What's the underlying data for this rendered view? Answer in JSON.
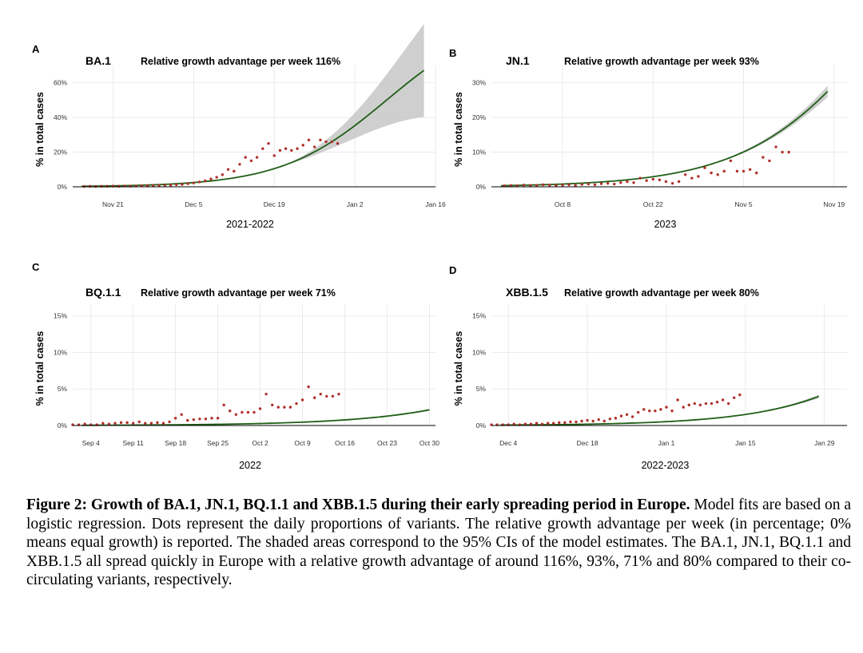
{
  "chart_data": [
    {
      "type": "scatter",
      "panel": "A",
      "title": "BA.1",
      "subtitle": "Relative growth advantage per week 116%",
      "xlabel": "2021-2022",
      "ylabel": "% in total cases",
      "x_ticks": [
        "Nov 21",
        "Dec 5",
        "Dec 19",
        "Jan 2",
        "Jan 16"
      ],
      "y_ticks": [
        "0%",
        "20%",
        "40%",
        "60%"
      ],
      "ylim": [
        0,
        70
      ],
      "xlim_days": [
        -7,
        56
      ],
      "fit": {
        "lower": 0,
        "upper": 100,
        "t0": 47.5,
        "k": 0.11,
        "ci": 0.4,
        "to_day": 54
      },
      "points_day_offset_from": "Nov 21",
      "points": [
        [
          -5,
          0.2
        ],
        [
          -4,
          0.3
        ],
        [
          -3,
          0.2
        ],
        [
          -2,
          0.3
        ],
        [
          -1,
          0.3
        ],
        [
          0,
          0.4
        ],
        [
          1,
          0.3
        ],
        [
          2,
          0.5
        ],
        [
          3,
          0.4
        ],
        [
          4,
          0.5
        ],
        [
          5,
          0.6
        ],
        [
          6,
          0.6
        ],
        [
          7,
          0.7
        ],
        [
          8,
          0.8
        ],
        [
          9,
          0.9
        ],
        [
          10,
          1.0
        ],
        [
          11,
          1.2
        ],
        [
          12,
          1.4
        ],
        [
          13,
          1.8
        ],
        [
          14,
          2.2
        ],
        [
          15,
          2.8
        ],
        [
          16,
          3.5
        ],
        [
          17,
          4.5
        ],
        [
          18,
          5.5
        ],
        [
          19,
          7
        ],
        [
          20,
          10
        ],
        [
          21,
          9
        ],
        [
          22,
          13
        ],
        [
          23,
          17
        ],
        [
          24,
          15
        ],
        [
          25,
          17
        ],
        [
          26,
          22
        ],
        [
          27,
          25
        ],
        [
          28,
          18
        ],
        [
          29,
          21
        ],
        [
          30,
          22
        ],
        [
          31,
          21
        ],
        [
          32,
          22
        ],
        [
          33,
          24
        ],
        [
          34,
          27
        ],
        [
          35,
          23
        ],
        [
          36,
          27
        ],
        [
          37,
          26
        ],
        [
          38,
          26
        ],
        [
          39,
          25
        ]
      ]
    },
    {
      "type": "scatter",
      "panel": "B",
      "title": "JN.1",
      "subtitle": "Relative growth advantage per week 93%",
      "xlabel": "2023",
      "ylabel": "% in total cases",
      "x_ticks": [
        "Oct 8",
        "Oct 22",
        "Nov 5",
        "Nov 19"
      ],
      "y_ticks": [
        "0%",
        "10%",
        "20%",
        "30%"
      ],
      "ylim": [
        0,
        35
      ],
      "xlim_days": [
        -11,
        44
      ],
      "fit": {
        "lower": 0,
        "upper": 100,
        "t0": 51.3,
        "k": 0.094,
        "ci": 0.06,
        "to_day": 41
      },
      "points_day_offset_from": "Oct 8",
      "points": [
        [
          -9,
          0.3
        ],
        [
          -8,
          0.4
        ],
        [
          -7,
          0.3
        ],
        [
          -6,
          0.5
        ],
        [
          -5,
          0.4
        ],
        [
          -4,
          0.4
        ],
        [
          -3,
          0.6
        ],
        [
          -2,
          0.5
        ],
        [
          -1,
          0.4
        ],
        [
          0,
          0.5
        ],
        [
          1,
          0.6
        ],
        [
          2,
          0.4
        ],
        [
          3,
          0.7
        ],
        [
          4,
          0.8
        ],
        [
          5,
          0.6
        ],
        [
          6,
          0.9
        ],
        [
          7,
          1.0
        ],
        [
          8,
          0.8
        ],
        [
          9,
          1.2
        ],
        [
          10,
          1.5
        ],
        [
          11,
          1.2
        ],
        [
          12,
          2.5
        ],
        [
          13,
          1.8
        ],
        [
          14,
          2.2
        ],
        [
          15,
          2.0
        ],
        [
          16,
          1.5
        ],
        [
          17,
          1.0
        ],
        [
          18,
          1.5
        ],
        [
          19,
          3.5
        ],
        [
          20,
          2.5
        ],
        [
          21,
          3.0
        ],
        [
          22,
          5.5
        ],
        [
          23,
          4.0
        ],
        [
          24,
          3.5
        ],
        [
          25,
          4.5
        ],
        [
          26,
          7.5
        ],
        [
          27,
          4.5
        ],
        [
          28,
          4.5
        ],
        [
          29,
          5.0
        ],
        [
          30,
          4.0
        ],
        [
          31,
          8.5
        ],
        [
          32,
          7.5
        ],
        [
          33,
          11.5
        ],
        [
          34,
          10
        ],
        [
          35,
          10
        ]
      ]
    },
    {
      "type": "scatter",
      "panel": "C",
      "title": "BQ.1.1",
      "subtitle": "Relative growth advantage per week 71%",
      "xlabel": "2022",
      "ylabel": "% in total cases",
      "x_ticks": [
        "Sep 4",
        "Sep 11",
        "Sep 18",
        "Sep 25",
        "Oct 2",
        "Oct 9",
        "Oct 16",
        "Oct 23",
        "Oct 30"
      ],
      "y_ticks": [
        "0%",
        "5%",
        "10%",
        "15%"
      ],
      "ylim": [
        0,
        16.5
      ],
      "xlim_days": [
        -3,
        57
      ],
      "fit": {
        "lower": 0,
        "upper": 100,
        "t0": 107.3,
        "k": 0.0745,
        "ci": 0.06,
        "to_day": 56
      },
      "points_day_offset_from": "Sep 4",
      "points": [
        [
          -3,
          0.1
        ],
        [
          -2,
          0.1
        ],
        [
          -1,
          0.2
        ],
        [
          0,
          0.1
        ],
        [
          1,
          0.1
        ],
        [
          2,
          0.3
        ],
        [
          3,
          0.2
        ],
        [
          4,
          0.3
        ],
        [
          5,
          0.4
        ],
        [
          6,
          0.4
        ],
        [
          7,
          0.3
        ],
        [
          8,
          0.5
        ],
        [
          9,
          0.3
        ],
        [
          10,
          0.3
        ],
        [
          11,
          0.4
        ],
        [
          12,
          0.3
        ],
        [
          13,
          0.5
        ],
        [
          14,
          1.0
        ],
        [
          15,
          1.5
        ],
        [
          16,
          0.7
        ],
        [
          17,
          0.8
        ],
        [
          18,
          0.9
        ],
        [
          19,
          0.9
        ],
        [
          20,
          1.0
        ],
        [
          21,
          1.0
        ],
        [
          22,
          2.8
        ],
        [
          23,
          2.0
        ],
        [
          24,
          1.5
        ],
        [
          25,
          1.8
        ],
        [
          26,
          1.8
        ],
        [
          27,
          1.8
        ],
        [
          28,
          2.3
        ],
        [
          29,
          4.3
        ],
        [
          30,
          2.8
        ],
        [
          31,
          2.5
        ],
        [
          32,
          2.5
        ],
        [
          33,
          2.5
        ],
        [
          34,
          3.0
        ],
        [
          35,
          3.5
        ],
        [
          36,
          5.3
        ],
        [
          37,
          3.8
        ],
        [
          38,
          4.3
        ],
        [
          39,
          4.0
        ],
        [
          40,
          4.0
        ],
        [
          41,
          4.3
        ]
      ]
    },
    {
      "type": "scatter",
      "panel": "D",
      "title": "XBB.1.5",
      "subtitle": "Relative growth advantage per week 80%",
      "xlabel": "2022-2023",
      "ylabel": "% in total cases",
      "x_ticks": [
        "Dec 4",
        "Dec 18",
        "Jan 1",
        "Jan 15",
        "Jan 29"
      ],
      "y_ticks": [
        "0%",
        "5%",
        "10%",
        "15%"
      ],
      "ylim": [
        0,
        16.5
      ],
      "xlim_days": [
        -3,
        60
      ],
      "fit": {
        "lower": 0,
        "upper": 100,
        "t0": 96.6,
        "k": 0.0765,
        "ci": 0.06,
        "to_day": 55
      },
      "points_day_offset_from": "Dec 4",
      "points": [
        [
          -3,
          0.1
        ],
        [
          -2,
          0.1
        ],
        [
          -1,
          0.1
        ],
        [
          0,
          0.1
        ],
        [
          1,
          0.2
        ],
        [
          2,
          0.1
        ],
        [
          3,
          0.2
        ],
        [
          4,
          0.2
        ],
        [
          5,
          0.3
        ],
        [
          6,
          0.2
        ],
        [
          7,
          0.3
        ],
        [
          8,
          0.3
        ],
        [
          9,
          0.4
        ],
        [
          10,
          0.4
        ],
        [
          11,
          0.5
        ],
        [
          12,
          0.5
        ],
        [
          13,
          0.6
        ],
        [
          14,
          0.7
        ],
        [
          15,
          0.6
        ],
        [
          16,
          0.8
        ],
        [
          17,
          0.6
        ],
        [
          18,
          0.9
        ],
        [
          19,
          1.0
        ],
        [
          20,
          1.3
        ],
        [
          21,
          1.5
        ],
        [
          22,
          1.2
        ],
        [
          23,
          1.8
        ],
        [
          24,
          2.2
        ],
        [
          25,
          2.0
        ],
        [
          26,
          2.0
        ],
        [
          27,
          2.2
        ],
        [
          28,
          2.5
        ],
        [
          29,
          2.0
        ],
        [
          30,
          3.5
        ],
        [
          31,
          2.5
        ],
        [
          32,
          2.8
        ],
        [
          33,
          3.0
        ],
        [
          34,
          2.8
        ],
        [
          35,
          3.0
        ],
        [
          36,
          3.0
        ],
        [
          37,
          3.2
        ],
        [
          38,
          3.5
        ],
        [
          39,
          3.0
        ],
        [
          40,
          3.8
        ],
        [
          41,
          4.2
        ]
      ]
    }
  ],
  "caption": {
    "bold": "Figure 2: Growth of BA.1, JN.1, BQ.1.1 and XBB.1.5 during their early spreading period in Europe.",
    "text": " Model fits are based on a logistic regression. Dots represent the daily proportions of variants. The relative growth advantage per week (in percentage; 0% means equal growth) is reported. The shaded areas correspond to the 95% CIs of the model estimates. The BA.1, JN.1, BQ.1.1 and XBB.1.5 all spread quickly in Europe with a relative growth advantage of around 116%, 93%, 71% and 80% compared to their co-circulating variants, respectively."
  },
  "colors": {
    "fit_line": "#1f5e16",
    "ci_band": "#bfbfbf",
    "dots": "#b0302a",
    "grid": "#e6e6e6"
  }
}
